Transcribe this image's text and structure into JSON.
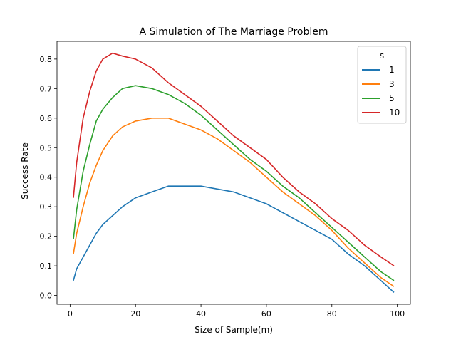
{
  "chart_data": {
    "type": "line",
    "title": "A Simulation of The Marriage Problem",
    "xlabel": "Size of Sample(m)",
    "ylabel": "Success Rate",
    "xlim": [
      -4,
      104
    ],
    "ylim": [
      -0.03,
      0.86
    ],
    "xticks": [
      0,
      20,
      40,
      60,
      80,
      100
    ],
    "yticks": [
      0.0,
      0.1,
      0.2,
      0.3,
      0.4,
      0.5,
      0.6,
      0.7,
      0.8
    ],
    "grid": false,
    "legend": {
      "title": "s",
      "position": "top-right"
    },
    "x": [
      1,
      2,
      4,
      6,
      8,
      10,
      13,
      16,
      20,
      25,
      30,
      35,
      40,
      45,
      50,
      55,
      60,
      65,
      70,
      75,
      80,
      85,
      90,
      95,
      99
    ],
    "series": [
      {
        "name": "1",
        "color": "#1f77b4",
        "values": [
          0.05,
          0.09,
          0.13,
          0.17,
          0.21,
          0.24,
          0.27,
          0.3,
          0.33,
          0.35,
          0.37,
          0.37,
          0.37,
          0.36,
          0.35,
          0.33,
          0.31,
          0.28,
          0.25,
          0.22,
          0.19,
          0.14,
          0.1,
          0.05,
          0.01
        ]
      },
      {
        "name": "3",
        "color": "#ff7f0e",
        "values": [
          0.14,
          0.21,
          0.3,
          0.38,
          0.44,
          0.49,
          0.54,
          0.57,
          0.59,
          0.6,
          0.6,
          0.58,
          0.56,
          0.53,
          0.49,
          0.45,
          0.4,
          0.35,
          0.31,
          0.27,
          0.22,
          0.16,
          0.11,
          0.06,
          0.03
        ]
      },
      {
        "name": "5",
        "color": "#2ca02c",
        "values": [
          0.19,
          0.29,
          0.42,
          0.51,
          0.59,
          0.63,
          0.67,
          0.7,
          0.71,
          0.7,
          0.68,
          0.65,
          0.61,
          0.56,
          0.51,
          0.46,
          0.42,
          0.37,
          0.33,
          0.28,
          0.23,
          0.18,
          0.13,
          0.08,
          0.05
        ]
      },
      {
        "name": "10",
        "color": "#d62728",
        "values": [
          0.33,
          0.45,
          0.6,
          0.69,
          0.76,
          0.8,
          0.82,
          0.81,
          0.8,
          0.77,
          0.72,
          0.68,
          0.64,
          0.59,
          0.54,
          0.5,
          0.46,
          0.4,
          0.35,
          0.31,
          0.26,
          0.22,
          0.17,
          0.13,
          0.1
        ]
      }
    ]
  }
}
